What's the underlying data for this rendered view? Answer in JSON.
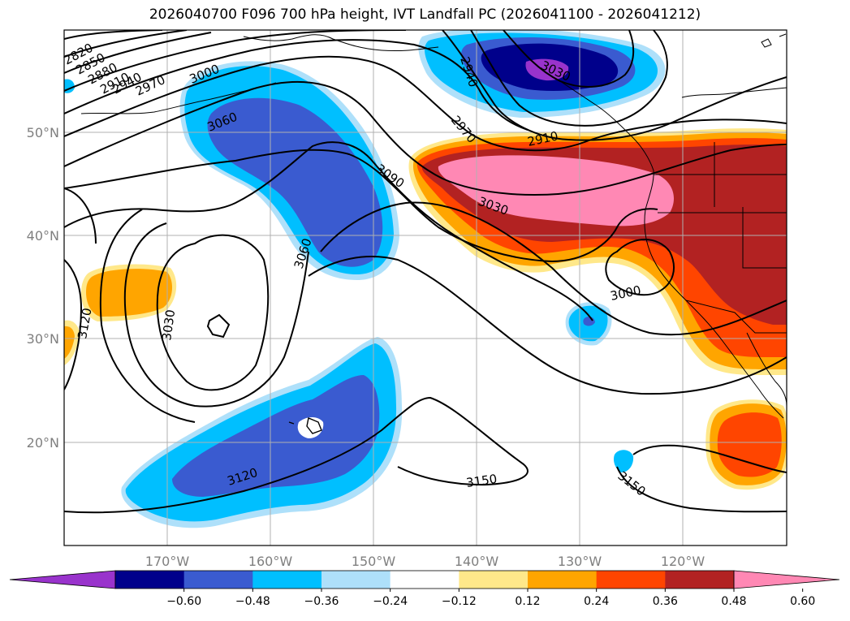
{
  "title": "2026040700 F096 700 hPa height, IVT Landfall PC (2026041100 - 2026041212)",
  "lat_labels": [
    "50°N",
    "40°N",
    "30°N",
    "20°N"
  ],
  "lon_labels": [
    "170°W",
    "160°W",
    "150°W",
    "140°W",
    "130°W",
    "120°W"
  ],
  "contour_labels": [
    "2820",
    "2850",
    "2880",
    "2910",
    "2940",
    "2970",
    "3000",
    "3060",
    "3090",
    "3030",
    "3060",
    "2940",
    "2970",
    "2910",
    "3030",
    "3000",
    "3120",
    "3030",
    "3120",
    "3150",
    "3150"
  ],
  "colorbar": {
    "ticks": [
      "−0.60",
      "−0.48",
      "−0.36",
      "−0.24",
      "−0.12",
      "0.12",
      "0.24",
      "0.36",
      "0.48",
      "0.60"
    ],
    "colors": [
      "#9933cc",
      "#00008b",
      "#3a5bd0",
      "#00bfff",
      "#aee0fa",
      "#ffffff",
      "#ffe88a",
      "#ffa500",
      "#ff4500",
      "#b22222",
      "#ff88b4"
    ]
  },
  "colors": {
    "frame": "#000000",
    "grid": "#b0b0b0",
    "contour": "#000000"
  }
}
